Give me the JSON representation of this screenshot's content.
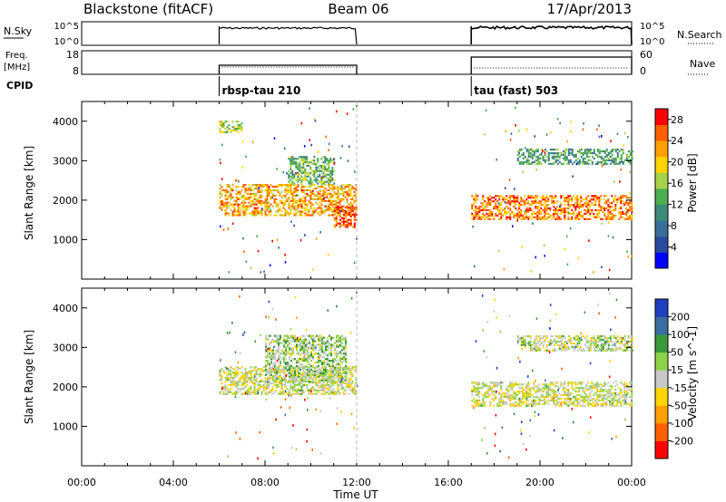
{
  "header": {
    "station": "Blackstone (fitACF)",
    "beam": "Beam 06",
    "date": "17/Apr/2013"
  },
  "top_panels": {
    "nsky_label": "N.Sky",
    "nsearch_label": "N.Search",
    "nsky_ticks": [
      "10^5",
      "10^0"
    ],
    "nsearch_ticks": [
      "10^5",
      "10^0"
    ],
    "freq_label_1": "Freq.",
    "freq_label_2": "[MHz]",
    "freq_ticks": [
      "18",
      "8"
    ],
    "nave_label": "Nave",
    "nave_ticks": [
      "60",
      "0"
    ],
    "cpid_label": "CPID",
    "cpid_segments": [
      {
        "label": "rbsp-tau 210",
        "start_hour": 6.0,
        "end_hour": 12.0
      },
      {
        "label": "tau (fast) 503",
        "start_hour": 17.0,
        "end_hour": 24.0
      }
    ]
  },
  "axes": {
    "ylabel": "Slant Range [km]",
    "yticks": [
      "4000",
      "3000",
      "2000",
      "1000"
    ],
    "xticks": [
      "00:00",
      "04:00",
      "08:00",
      "12:00",
      "16:00",
      "20:00",
      "00:00"
    ],
    "xlabel": "Time UT"
  },
  "colorbars": {
    "power_label": "Power [dB]",
    "power_ticks": [
      "28",
      "24",
      "20",
      "16",
      "12",
      "8",
      "4"
    ],
    "velocity_label": "Velocity [m s^-1]",
    "velocity_ticks": [
      "200",
      "100",
      "50",
      "15",
      "-15",
      "-50",
      "-100",
      "-200"
    ]
  },
  "chart_data": [
    {
      "type": "heatmap",
      "name": "power",
      "x_range_hours": [
        0,
        24
      ],
      "y_range_km": [
        0,
        4500
      ],
      "data_intervals_hours": [
        [
          6.0,
          12.0
        ],
        [
          17.0,
          24.0
        ]
      ],
      "power_scale_db": [
        0,
        30
      ],
      "colors": [
        "#0000ff",
        "#2a4aa0",
        "#3a6e9a",
        "#3c8a78",
        "#4caf50",
        "#a8d24a",
        "#ffd400",
        "#ffa000",
        "#ff6000",
        "#ff0000"
      ],
      "features": [
        {
          "hours": [
            6.0,
            7.0
          ],
          "range_km": [
            3700,
            4000
          ],
          "power_db": 16
        },
        {
          "hours": [
            6.0,
            12.0
          ],
          "range_km": [
            1600,
            2400
          ],
          "power_db": 22
        },
        {
          "hours": [
            9.0,
            11.0
          ],
          "range_km": [
            2400,
            3100
          ],
          "power_db": 14
        },
        {
          "hours": [
            11.0,
            12.0
          ],
          "range_km": [
            1300,
            1800
          ],
          "power_db": 26
        },
        {
          "hours": [
            17.0,
            24.0
          ],
          "range_km": [
            1500,
            2100
          ],
          "power_db": 24
        },
        {
          "hours": [
            19.0,
            24.0
          ],
          "range_km": [
            2900,
            3300
          ],
          "power_db": 12
        }
      ]
    },
    {
      "type": "heatmap",
      "name": "velocity",
      "x_range_hours": [
        0,
        24
      ],
      "y_range_km": [
        0,
        4500
      ],
      "velocity_scale": [
        -250,
        250
      ],
      "colors": [
        "#ff0000",
        "#ff6000",
        "#ffa000",
        "#ffd400",
        "#c8c8c8",
        "#8fd24a",
        "#3a9a3a",
        "#3a6ea0",
        "#2040c0"
      ],
      "features": [
        {
          "hours": [
            6.0,
            12.0
          ],
          "range_km": [
            1800,
            2500
          ],
          "velocity": 0
        },
        {
          "hours": [
            8.0,
            11.5
          ],
          "range_km": [
            2100,
            3300
          ],
          "velocity": 40
        },
        {
          "hours": [
            17.0,
            24.0
          ],
          "range_km": [
            1500,
            2100
          ],
          "velocity": 0
        },
        {
          "hours": [
            19.0,
            24.0
          ],
          "range_km": [
            2900,
            3300
          ],
          "velocity": 20
        }
      ]
    }
  ]
}
